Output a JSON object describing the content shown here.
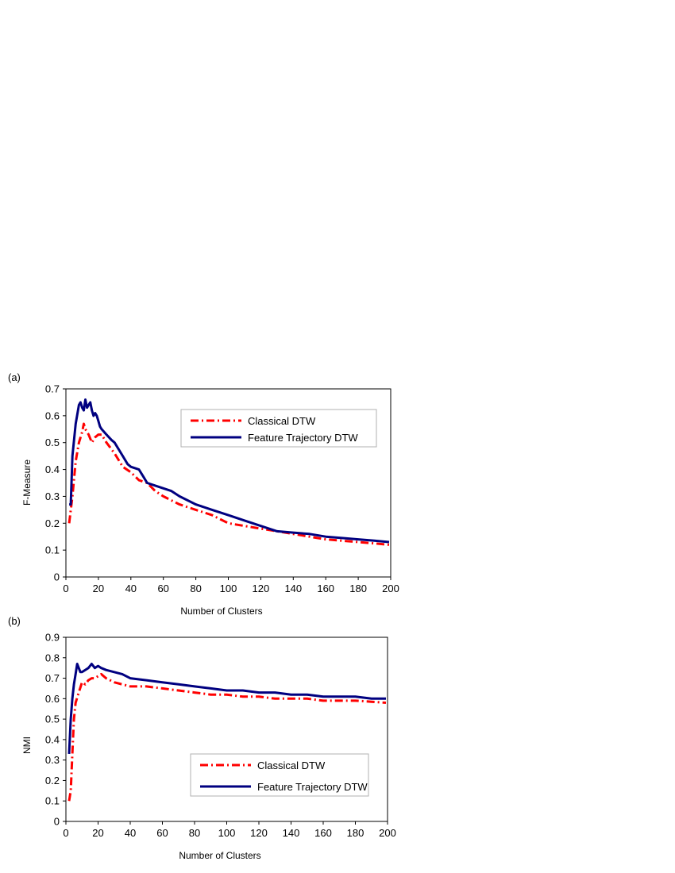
{
  "chart_data": [
    {
      "type": "line",
      "panel_label": "(a)",
      "xlabel": "Number of Clusters",
      "ylabel": "F-Measure",
      "xlim": [
        0,
        200
      ],
      "ylim": [
        0,
        0.7
      ],
      "xticks": [
        0,
        20,
        40,
        60,
        80,
        100,
        120,
        140,
        160,
        180,
        200
      ],
      "yticks": [
        0,
        0.1,
        0.2,
        0.3,
        0.4,
        0.5,
        0.6,
        0.7
      ],
      "legend_position": "top-right",
      "series": [
        {
          "name": "Classical DTW",
          "color": "#ff0000",
          "style": "dash-dot",
          "x": [
            2,
            4,
            6,
            8,
            10,
            11,
            12,
            14,
            16,
            18,
            20,
            22,
            25,
            30,
            35,
            40,
            45,
            50,
            55,
            60,
            70,
            80,
            90,
            100,
            110,
            120,
            130,
            140,
            150,
            160,
            170,
            180,
            190,
            199
          ],
          "y": [
            0.2,
            0.3,
            0.43,
            0.5,
            0.54,
            0.57,
            0.55,
            0.53,
            0.5,
            0.52,
            0.53,
            0.53,
            0.5,
            0.46,
            0.41,
            0.39,
            0.36,
            0.35,
            0.32,
            0.3,
            0.27,
            0.25,
            0.23,
            0.2,
            0.19,
            0.18,
            0.17,
            0.16,
            0.15,
            0.14,
            0.135,
            0.13,
            0.125,
            0.12
          ]
        },
        {
          "name": "Feature Trajectory  DTW",
          "color": "#000080",
          "style": "solid",
          "x": [
            2,
            3,
            4,
            6,
            8,
            9,
            10,
            11,
            12,
            13,
            14,
            15,
            16,
            17,
            18,
            19,
            20,
            21,
            22,
            25,
            28,
            30,
            35,
            38,
            40,
            45,
            48,
            50,
            55,
            60,
            65,
            70,
            80,
            90,
            100,
            110,
            120,
            130,
            140,
            150,
            160,
            170,
            180,
            190,
            199
          ],
          "y": [
            0.27,
            0.27,
            0.45,
            0.57,
            0.64,
            0.65,
            0.63,
            0.62,
            0.66,
            0.63,
            0.64,
            0.65,
            0.62,
            0.6,
            0.61,
            0.6,
            0.58,
            0.56,
            0.55,
            0.53,
            0.51,
            0.5,
            0.45,
            0.42,
            0.41,
            0.4,
            0.37,
            0.35,
            0.34,
            0.33,
            0.32,
            0.3,
            0.27,
            0.25,
            0.23,
            0.21,
            0.19,
            0.17,
            0.165,
            0.16,
            0.15,
            0.145,
            0.14,
            0.135,
            0.13
          ]
        }
      ]
    },
    {
      "type": "line",
      "panel_label": "(b)",
      "xlabel": "Number of Clusters",
      "ylabel": "NMI",
      "xlim": [
        0,
        200
      ],
      "ylim": [
        0,
        0.9
      ],
      "xticks": [
        0,
        20,
        40,
        60,
        80,
        100,
        120,
        140,
        160,
        180,
        200
      ],
      "yticks": [
        0,
        0.1,
        0.2,
        0.3,
        0.4,
        0.5,
        0.6,
        0.7,
        0.8,
        0.9
      ],
      "legend_position": "lower-right",
      "series": [
        {
          "name": "Classical DTW",
          "color": "#ff0000",
          "style": "dash-dot",
          "x": [
            2,
            3,
            4,
            5,
            6,
            8,
            10,
            12,
            14,
            16,
            18,
            20,
            22,
            25,
            30,
            40,
            50,
            60,
            70,
            80,
            90,
            100,
            110,
            120,
            130,
            140,
            150,
            160,
            170,
            180,
            190,
            199
          ],
          "y": [
            0.1,
            0.15,
            0.33,
            0.5,
            0.58,
            0.63,
            0.68,
            0.67,
            0.69,
            0.7,
            0.7,
            0.71,
            0.72,
            0.7,
            0.68,
            0.66,
            0.66,
            0.65,
            0.64,
            0.63,
            0.62,
            0.62,
            0.61,
            0.61,
            0.6,
            0.6,
            0.6,
            0.59,
            0.59,
            0.59,
            0.585,
            0.58
          ]
        },
        {
          "name": "Feature Trajectory DTW",
          "color": "#000080",
          "style": "solid",
          "x": [
            2,
            3,
            4,
            5,
            6,
            7,
            8,
            9,
            10,
            12,
            14,
            16,
            17,
            18,
            20,
            22,
            25,
            30,
            35,
            40,
            50,
            60,
            70,
            80,
            90,
            100,
            110,
            120,
            130,
            140,
            150,
            160,
            170,
            180,
            190,
            199
          ],
          "y": [
            0.33,
            0.5,
            0.6,
            0.67,
            0.72,
            0.77,
            0.75,
            0.73,
            0.73,
            0.74,
            0.75,
            0.77,
            0.76,
            0.75,
            0.76,
            0.75,
            0.74,
            0.73,
            0.72,
            0.7,
            0.69,
            0.68,
            0.67,
            0.66,
            0.65,
            0.64,
            0.64,
            0.63,
            0.63,
            0.62,
            0.62,
            0.61,
            0.61,
            0.61,
            0.6,
            0.6
          ]
        }
      ]
    }
  ]
}
